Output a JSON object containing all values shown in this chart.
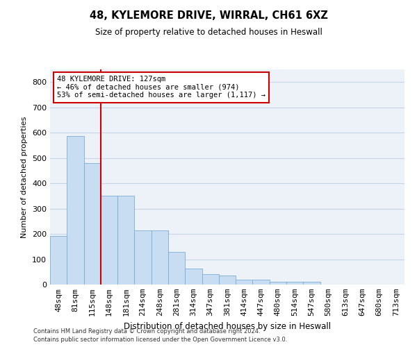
{
  "title_line1": "48, KYLEMORE DRIVE, WIRRAL, CH61 6XZ",
  "title_line2": "Size of property relative to detached houses in Heswall",
  "xlabel": "Distribution of detached houses by size in Heswall",
  "ylabel": "Number of detached properties",
  "categories": [
    "48sqm",
    "81sqm",
    "115sqm",
    "148sqm",
    "181sqm",
    "214sqm",
    "248sqm",
    "281sqm",
    "314sqm",
    "347sqm",
    "381sqm",
    "414sqm",
    "447sqm",
    "480sqm",
    "514sqm",
    "547sqm",
    "580sqm",
    "613sqm",
    "647sqm",
    "680sqm",
    "713sqm"
  ],
  "values": [
    193,
    588,
    480,
    352,
    352,
    215,
    215,
    130,
    63,
    42,
    35,
    18,
    18,
    10,
    10,
    10,
    0,
    0,
    0,
    0,
    0
  ],
  "bar_color": "#c9ddf2",
  "bar_edge_color": "#7aadd4",
  "grid_color": "#c8d4e8",
  "background_color": "#edf2f9",
  "vline_x": 2.5,
  "vline_color": "#cc0000",
  "annotation_text": "48 KYLEMORE DRIVE: 127sqm\n← 46% of detached houses are smaller (974)\n53% of semi-detached houses are larger (1,117) →",
  "annotation_box_color": "#cc0000",
  "ylim": [
    0,
    850
  ],
  "yticks": [
    0,
    100,
    200,
    300,
    400,
    500,
    600,
    700,
    800
  ],
  "footer_line1": "Contains HM Land Registry data © Crown copyright and database right 2024.",
  "footer_line2": "Contains public sector information licensed under the Open Government Licence v3.0."
}
